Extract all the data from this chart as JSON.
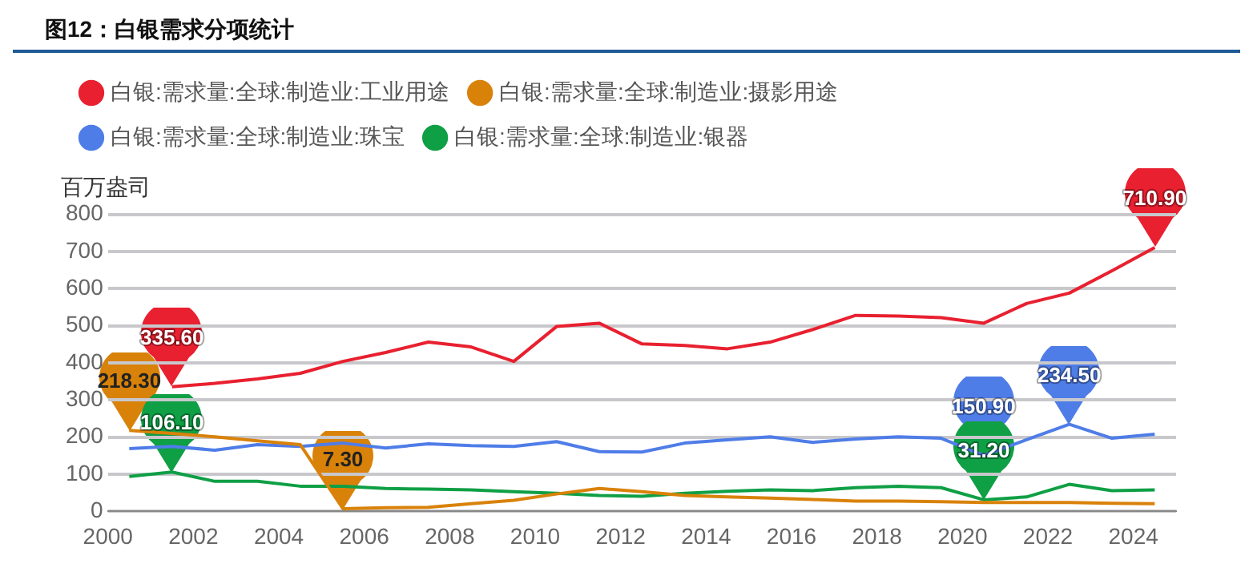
{
  "chart_data": {
    "type": "line",
    "title": "图12：白银需求分项统计",
    "ylabel": "百万盎司",
    "x": [
      2000.5,
      2001.5,
      2002.5,
      2003.5,
      2004.5,
      2005.5,
      2006.5,
      2007.5,
      2008.5,
      2009.5,
      2010.5,
      2011.5,
      2012.5,
      2013.5,
      2014.5,
      2015.5,
      2016.5,
      2017.5,
      2018.5,
      2019.5,
      2020.5,
      2021.5,
      2022.5,
      2023.5,
      2024.5
    ],
    "series": [
      {
        "name": "白银:需求量:全球:制造业:工业用途",
        "color": "#e8202f",
        "values": [
          null,
          335.6,
          345,
          357,
          372,
          404,
          428,
          456,
          443,
          404,
          498,
          507,
          451,
          447,
          438,
          456,
          490,
          528,
          526,
          522,
          507,
          560,
          588,
          648,
          710.9
        ]
      },
      {
        "name": "白银:需求量:全球:制造业:摄影用途",
        "color": "#d9820a",
        "values": [
          218.3,
          210,
          201,
          190,
          180,
          7.3,
          10,
          11,
          21,
          30,
          47,
          62,
          53,
          43,
          39,
          36,
          32,
          28,
          28,
          26,
          24,
          24,
          24,
          22,
          21
        ]
      },
      {
        "name": "白银:需求量:全球:制造业:珠宝",
        "color": "#4f7de8",
        "values": [
          169,
          175,
          165,
          180,
          175,
          184,
          171,
          182,
          177,
          175,
          188,
          161,
          160,
          184,
          193,
          201,
          186,
          195,
          201,
          197,
          150.9,
          193,
          234.5,
          197,
          208
        ]
      },
      {
        "name": "白银:需求量:全球:制造业:银器",
        "color": "#0f9f45",
        "values": [
          94,
          106.1,
          81,
          81,
          68,
          68,
          62,
          60,
          58,
          53,
          49,
          43,
          41,
          49,
          54,
          58,
          56,
          64,
          68,
          64,
          31.2,
          39,
          73,
          56,
          58
        ]
      }
    ],
    "xlim": [
      2000,
      2025
    ],
    "xticks": [
      2000,
      2002,
      2004,
      2006,
      2008,
      2010,
      2012,
      2014,
      2016,
      2018,
      2020,
      2022,
      2024
    ],
    "ylim": [
      0,
      800
    ],
    "yticks": [
      0,
      100,
      200,
      300,
      400,
      500,
      600,
      700,
      800
    ],
    "grid": "y",
    "legend": "top",
    "marker": "none",
    "line_style": "solid",
    "annotations": [
      {
        "text": "335.60",
        "x": 2001.5,
        "y": 335.6
      },
      {
        "text": "710.90",
        "x": 2024.5,
        "y": 710.9
      },
      {
        "text": "218.30",
        "x": 2000.5,
        "y": 218.3
      },
      {
        "text": "7.30",
        "x": 2005.5,
        "y": 7.3
      },
      {
        "text": "150.90",
        "x": 2020.5,
        "y": 150.9
      },
      {
        "text": "234.50",
        "x": 2022.5,
        "y": 234.5
      },
      {
        "text": "106.10",
        "x": 2001.5,
        "y": 106.1
      },
      {
        "text": "31.20",
        "x": 2020.5,
        "y": 31.2
      }
    ]
  }
}
